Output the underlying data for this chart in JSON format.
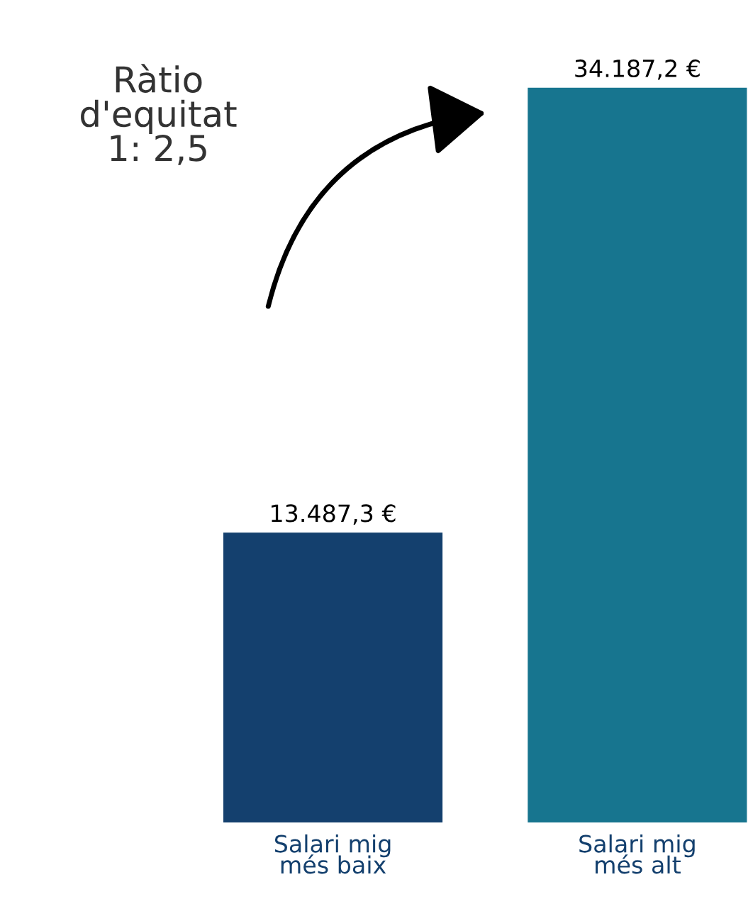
{
  "chart_data": {
    "type": "bar",
    "categories": [
      "Salari mig\nmés baix",
      "Salari mig\nmés alt"
    ],
    "values": [
      13487.3,
      34187.2
    ],
    "colors": [
      "#14406e",
      "#17758f"
    ],
    "value_labels": [
      "13.487,3 €",
      "34.187,2 €"
    ],
    "annotations": [
      "Ràtio\nd'equitat\n1: 2,5"
    ],
    "grid": false,
    "legend": false
  }
}
